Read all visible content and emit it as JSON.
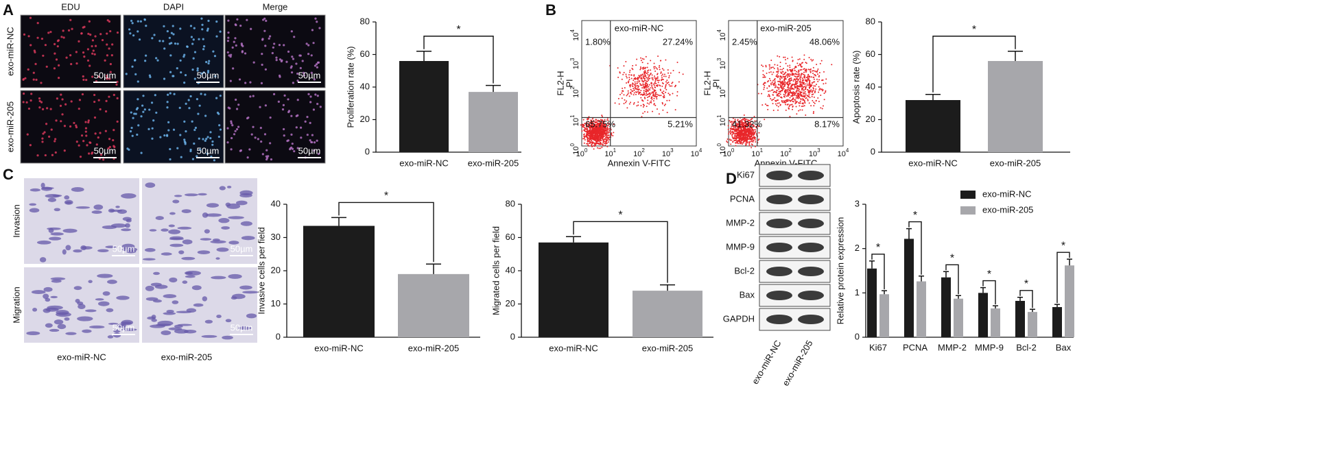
{
  "chart_data": [
    {
      "type": "bar",
      "ylabel": "Proliferation rate (%)",
      "categories": [
        "exo-miR-NC",
        "exo-miR-205"
      ],
      "values": [
        56,
        37
      ],
      "errors": [
        6,
        4
      ],
      "colors": [
        "#1c1c1c",
        "#a7a7ab"
      ],
      "ylim": [
        0,
        80
      ],
      "yticks": [
        0,
        20,
        40,
        60,
        80
      ],
      "significance": "*"
    },
    {
      "type": "bar",
      "ylabel": "Apoptosis rate (%)",
      "categories": [
        "exo-miR-NC",
        "exo-miR-205"
      ],
      "values": [
        32,
        56
      ],
      "errors": [
        3.5,
        6
      ],
      "colors": [
        "#1c1c1c",
        "#a7a7ab"
      ],
      "ylim": [
        0,
        80
      ],
      "yticks": [
        0,
        20,
        40,
        60,
        80
      ],
      "significance": "*"
    },
    {
      "type": "bar",
      "ylabel": "Invasive cells per field",
      "categories": [
        "exo-miR-NC",
        "exo-miR-205"
      ],
      "values": [
        33.5,
        19
      ],
      "errors": [
        2.5,
        3
      ],
      "colors": [
        "#1c1c1c",
        "#a7a7ab"
      ],
      "ylim": [
        0,
        40
      ],
      "yticks": [
        0,
        10,
        20,
        30,
        40
      ],
      "significance": "*"
    },
    {
      "type": "bar",
      "ylabel": "Migrated cells per field",
      "categories": [
        "exo-miR-NC",
        "exo-miR-205"
      ],
      "values": [
        57,
        28
      ],
      "errors": [
        3.5,
        3.5
      ],
      "colors": [
        "#1c1c1c",
        "#a7a7ab"
      ],
      "ylim": [
        0,
        80
      ],
      "yticks": [
        0,
        20,
        40,
        60,
        80
      ],
      "significance": "*"
    },
    {
      "type": "grouped_bar",
      "ylabel": "Relative protein expression",
      "categories": [
        "Ki67",
        "PCNA",
        "MMP-2",
        "MMP-9",
        "Bcl-2",
        "Bax"
      ],
      "series": [
        {
          "name": "exo-miR-NC",
          "color": "#1c1c1c",
          "values": [
            1.55,
            2.22,
            1.35,
            1.0,
            0.82,
            0.68
          ],
          "errors": [
            0.17,
            0.23,
            0.13,
            0.12,
            0.08,
            0.06
          ]
        },
        {
          "name": "exo-miR-205",
          "color": "#a7a7ab",
          "values": [
            0.97,
            1.26,
            0.87,
            0.65,
            0.57,
            1.62
          ],
          "errors": [
            0.08,
            0.12,
            0.07,
            0.06,
            0.06,
            0.14
          ]
        }
      ],
      "ylim": [
        0,
        3
      ],
      "yticks": [
        0,
        1,
        2,
        3
      ],
      "legend": "upper right",
      "significance": "*"
    }
  ],
  "figure": {
    "panel_labels": [
      "A",
      "B",
      "C",
      "D"
    ],
    "scale_bar": "50µm",
    "edu": {
      "columns": [
        "EDU",
        "DAPI",
        "Merge"
      ],
      "rows": [
        "exo-miR-NC",
        "exo-miR-205"
      ]
    },
    "flow": {
      "plots": [
        {
          "title": "exo-miR-NC",
          "quadrants": [
            "1.80%",
            "27.24%",
            "65.75%",
            "5.21%"
          ]
        },
        {
          "title": "exo-miR-205",
          "quadrants": [
            "2.45%",
            "48.06%",
            "41.32%",
            "8.17%"
          ]
        }
      ],
      "xlabel": "Annexin V-FITC",
      "ylabel": [
        "FL2-H",
        "PI"
      ],
      "tick_base": "10",
      "tick_exponents": [
        "0",
        "1",
        "2",
        "3",
        "4"
      ]
    },
    "transwell": {
      "rows": [
        "Invasion",
        "Migration"
      ],
      "columns": [
        "exo-miR-NC",
        "exo-miR-205"
      ]
    },
    "blot": {
      "proteins": [
        "Ki67",
        "PCNA",
        "MMP-2",
        "MMP-9",
        "Bcl-2",
        "Bax",
        "GAPDH"
      ],
      "lanes": [
        "exo-miR-NC",
        "exo-miR-205"
      ]
    }
  }
}
